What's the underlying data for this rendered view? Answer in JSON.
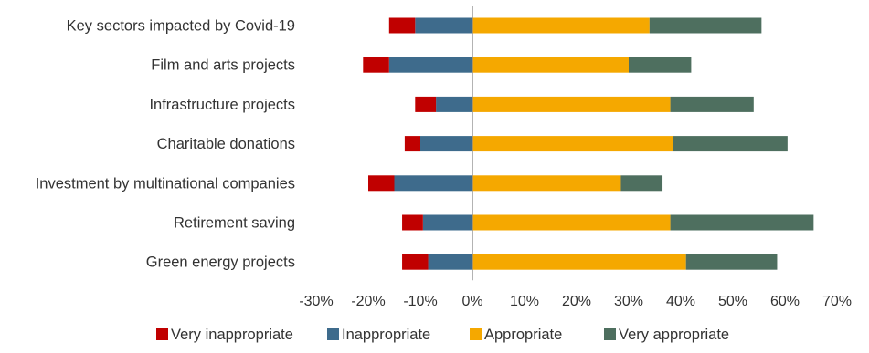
{
  "chart_data": {
    "type": "bar",
    "orientation": "horizontal",
    "stacked": "diverging",
    "title": "",
    "xlabel": "",
    "ylabel": "",
    "categories": [
      "Key sectors impacted by Covid-19",
      "Film and arts projects",
      "Infrastructure projects",
      "Charitable donations",
      "Investment by multinational companies",
      "Retirement saving",
      "Green energy projects"
    ],
    "series": [
      {
        "name": "Very inappropriate",
        "color": "#c00000",
        "values": [
          -5,
          -5,
          -4,
          -3,
          -5,
          -4,
          -5
        ]
      },
      {
        "name": "Inappropriate",
        "color": "#3e6b8c",
        "values": [
          -11,
          -16,
          -7,
          -10,
          -15,
          -9.5,
          -8.5
        ]
      },
      {
        "name": "Appropriate",
        "color": "#f5a800",
        "values": [
          34,
          30,
          38,
          38.5,
          28.5,
          38,
          41
        ]
      },
      {
        "name": "Very appropriate",
        "color": "#4e6f5f",
        "values": [
          21.5,
          12,
          16,
          22,
          8,
          27.5,
          17.5
        ]
      }
    ],
    "xlim": [
      -30,
      70
    ],
    "xticks": [
      "-30%",
      "-20%",
      "-10%",
      "0%",
      "10%",
      "20%",
      "30%",
      "40%",
      "50%",
      "60%",
      "70%"
    ],
    "grid": false,
    "legend_position": "bottom"
  }
}
